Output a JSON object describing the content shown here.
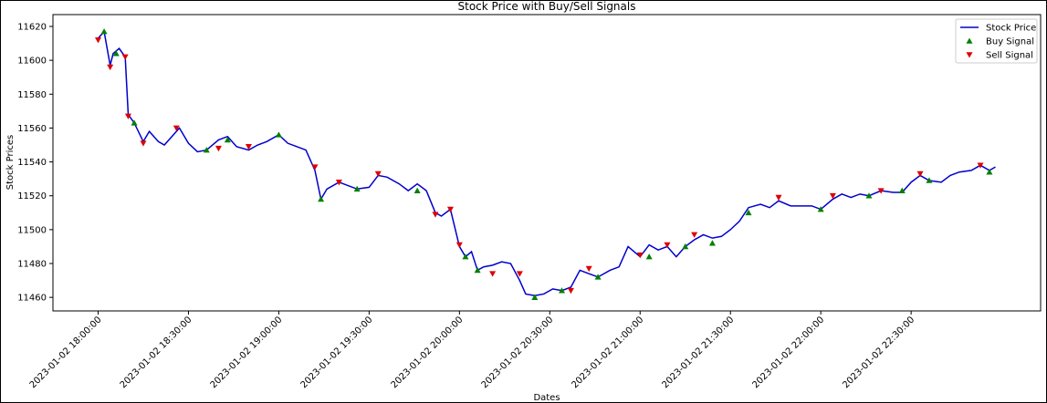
{
  "chart_data": {
    "type": "line",
    "title": "Stock Price with Buy/Sell Signals",
    "xlabel": "Dates",
    "ylabel": "Stock Prices",
    "xlim": [
      "2023-01-02 17:45:00",
      "2023-01-02 23:13:00"
    ],
    "xticks": [
      "2023-01-02 18:00:00",
      "2023-01-02 18:30:00",
      "2023-01-02 19:00:00",
      "2023-01-02 19:30:00",
      "2023-01-02 20:00:00",
      "2023-01-02 20:30:00",
      "2023-01-02 21:00:00",
      "2023-01-02 21:30:00",
      "2023-01-02 22:00:00",
      "2023-01-02 22:30:00"
    ],
    "ylim": [
      11452,
      11627
    ],
    "yticks": [
      11460,
      11480,
      11500,
      11520,
      11540,
      11560,
      11580,
      11600,
      11620
    ],
    "legend": "upper right",
    "series": [
      {
        "name": "Stock Price",
        "color": "#0000cc",
        "marker": "line",
        "x": [
          "2023-01-02 18:00:00",
          "2023-01-02 18:02:00",
          "2023-01-02 18:04:00",
          "2023-01-02 18:05:00",
          "2023-01-02 18:07:00",
          "2023-01-02 18:09:00",
          "2023-01-02 18:10:00",
          "2023-01-02 18:12:00",
          "2023-01-02 18:15:00",
          "2023-01-02 18:17:00",
          "2023-01-02 18:20:00",
          "2023-01-02 18:22:00",
          "2023-01-02 18:25:00",
          "2023-01-02 18:27:00",
          "2023-01-02 18:30:00",
          "2023-01-02 18:33:00",
          "2023-01-02 18:36:00",
          "2023-01-02 18:40:00",
          "2023-01-02 18:43:00",
          "2023-01-02 18:46:00",
          "2023-01-02 18:50:00",
          "2023-01-02 18:53:00",
          "2023-01-02 18:56:00",
          "2023-01-02 19:00:00",
          "2023-01-02 19:03:00",
          "2023-01-02 19:06:00",
          "2023-01-02 19:09:00",
          "2023-01-02 19:12:00",
          "2023-01-02 19:14:00",
          "2023-01-02 19:16:00",
          "2023-01-02 19:20:00",
          "2023-01-02 19:23:00",
          "2023-01-02 19:26:00",
          "2023-01-02 19:30:00",
          "2023-01-02 19:33:00",
          "2023-01-02 19:36:00",
          "2023-01-02 19:40:00",
          "2023-01-02 19:43:00",
          "2023-01-02 19:46:00",
          "2023-01-02 19:49:00",
          "2023-01-02 19:52:00",
          "2023-01-02 19:54:00",
          "2023-01-02 19:57:00",
          "2023-01-02 20:00:00",
          "2023-01-02 20:02:00",
          "2023-01-02 20:04:00",
          "2023-01-02 20:06:00",
          "2023-01-02 20:08:00",
          "2023-01-02 20:11:00",
          "2023-01-02 20:14:00",
          "2023-01-02 20:17:00",
          "2023-01-02 20:20:00",
          "2023-01-02 20:22:00",
          "2023-01-02 20:25:00",
          "2023-01-02 20:28:00",
          "2023-01-02 20:31:00",
          "2023-01-02 20:34:00",
          "2023-01-02 20:37:00",
          "2023-01-02 20:40:00",
          "2023-01-02 20:43:00",
          "2023-01-02 20:46:00",
          "2023-01-02 20:50:00",
          "2023-01-02 20:53:00",
          "2023-01-02 20:56:00",
          "2023-01-02 21:00:00",
          "2023-01-02 21:03:00",
          "2023-01-02 21:06:00",
          "2023-01-02 21:09:00",
          "2023-01-02 21:12:00",
          "2023-01-02 21:15:00",
          "2023-01-02 21:18:00",
          "2023-01-02 21:21:00",
          "2023-01-02 21:24:00",
          "2023-01-02 21:27:00",
          "2023-01-02 21:30:00",
          "2023-01-02 21:33:00",
          "2023-01-02 21:36:00",
          "2023-01-02 21:40:00",
          "2023-01-02 21:43:00",
          "2023-01-02 21:46:00",
          "2023-01-02 21:50:00",
          "2023-01-02 21:53:00",
          "2023-01-02 21:57:00",
          "2023-01-02 22:00:00",
          "2023-01-02 22:04:00",
          "2023-01-02 22:07:00",
          "2023-01-02 22:10:00",
          "2023-01-02 22:13:00",
          "2023-01-02 22:16:00",
          "2023-01-02 22:20:00",
          "2023-01-02 22:24:00",
          "2023-01-02 22:27:00",
          "2023-01-02 22:30:00",
          "2023-01-02 22:33:00",
          "2023-01-02 22:36:00",
          "2023-01-02 22:40:00",
          "2023-01-02 22:43:00",
          "2023-01-02 22:46:00",
          "2023-01-02 22:50:00",
          "2023-01-02 22:53:00",
          "2023-01-02 22:56:00",
          "2023-01-02 22:58:00"
        ],
        "values": [
          11613,
          11617,
          11597,
          11604,
          11607,
          11602,
          11568,
          11563,
          11552,
          11558,
          11552,
          11550,
          11556,
          11560,
          11551,
          11546,
          11547,
          11553,
          11555,
          11549,
          11547,
          11550,
          11552,
          11556,
          11551,
          11549,
          11547,
          11535,
          11518,
          11524,
          11528,
          11526,
          11524,
          11525,
          11532,
          11531,
          11527,
          11523,
          11527,
          11523,
          11510,
          11508,
          11512,
          11490,
          11484,
          11487,
          11476,
          11478,
          11479,
          11481,
          11480,
          11470,
          11462,
          11461,
          11462,
          11465,
          11464,
          11466,
          11476,
          11474,
          11472,
          11476,
          11478,
          11490,
          11484,
          11491,
          11488,
          11490,
          11484,
          11490,
          11494,
          11497,
          11495,
          11496,
          11500,
          11505,
          11513,
          11515,
          11513,
          11517,
          11514,
          11514,
          11514,
          11512,
          11518,
          11521,
          11519,
          11521,
          11520,
          11523,
          11522,
          11522,
          11528,
          11532,
          11529,
          11528,
          11532,
          11534,
          11535,
          11538,
          11535,
          11537
        ]
      },
      {
        "name": "Buy Signal",
        "color": "#008000",
        "marker": "^",
        "x": [
          "2023-01-02 18:02:00",
          "2023-01-02 18:06:00",
          "2023-01-02 18:12:00",
          "2023-01-02 18:36:00",
          "2023-01-02 18:43:00",
          "2023-01-02 19:00:00",
          "2023-01-02 19:14:00",
          "2023-01-02 19:26:00",
          "2023-01-02 19:46:00",
          "2023-01-02 20:02:00",
          "2023-01-02 20:06:00",
          "2023-01-02 20:25:00",
          "2023-01-02 20:34:00",
          "2023-01-02 20:46:00",
          "2023-01-02 21:03:00",
          "2023-01-02 21:15:00",
          "2023-01-02 21:24:00",
          "2023-01-02 21:36:00",
          "2023-01-02 22:00:00",
          "2023-01-02 22:16:00",
          "2023-01-02 22:27:00",
          "2023-01-02 22:36:00",
          "2023-01-02 22:56:00"
        ],
        "values": [
          11617,
          11604,
          11563,
          11547,
          11553,
          11556,
          11518,
          11524,
          11523,
          11484,
          11476,
          11460,
          11464,
          11472,
          11484,
          11490,
          11492,
          11510,
          11512,
          11520,
          11523,
          11529,
          11534
        ]
      },
      {
        "name": "Sell Signal",
        "color": "#dd0000",
        "marker": "v",
        "x": [
          "2023-01-02 18:00:00",
          "2023-01-02 18:04:00",
          "2023-01-02 18:09:00",
          "2023-01-02 18:10:00",
          "2023-01-02 18:15:00",
          "2023-01-02 18:26:00",
          "2023-01-02 18:40:00",
          "2023-01-02 18:50:00",
          "2023-01-02 19:12:00",
          "2023-01-02 19:20:00",
          "2023-01-02 19:33:00",
          "2023-01-02 19:52:00",
          "2023-01-02 19:57:00",
          "2023-01-02 20:00:00",
          "2023-01-02 20:11:00",
          "2023-01-02 20:20:00",
          "2023-01-02 20:37:00",
          "2023-01-02 20:43:00",
          "2023-01-02 21:00:00",
          "2023-01-02 21:09:00",
          "2023-01-02 21:18:00",
          "2023-01-02 21:46:00",
          "2023-01-02 22:04:00",
          "2023-01-02 22:20:00",
          "2023-01-02 22:33:00",
          "2023-01-02 22:53:00"
        ],
        "values": [
          11612,
          11596,
          11602,
          11567,
          11551,
          11560,
          11548,
          11549,
          11537,
          11528,
          11533,
          11509,
          11512,
          11491,
          11474,
          11474,
          11464,
          11477,
          11485,
          11491,
          11497,
          11519,
          11520,
          11523,
          11533,
          11538
        ]
      }
    ]
  }
}
